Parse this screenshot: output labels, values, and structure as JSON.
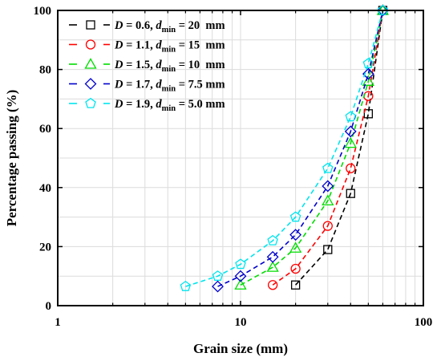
{
  "chart_data": {
    "type": "scatter",
    "xlabel": "Grain size (mm)",
    "ylabel": "Percentage passing (%)",
    "x_scale": "log",
    "xlim": [
      1,
      100
    ],
    "ylim": [
      0,
      100
    ],
    "x_ticks": [
      "1",
      "10",
      "100"
    ],
    "y_ticks": [
      "0",
      "20",
      "40",
      "60",
      "80",
      "100"
    ],
    "grid": true,
    "legend_position": "top-left",
    "series": [
      {
        "name": "D = 0.6, dmin = 20 mm",
        "legend": {
          "d_label": "D",
          "d_value": " = 0.6, ",
          "dmin_label": "d",
          "dmin_sub": "min",
          "dmin_value": " = 20  mm"
        },
        "color": "#000000",
        "marker": "square",
        "x": [
          20,
          30,
          40,
          50,
          60
        ],
        "y": [
          7,
          19,
          38,
          65,
          100
        ]
      },
      {
        "name": "D = 1.1, dmin = 15 mm",
        "legend": {
          "d_label": "D",
          "d_value": " = 1.1, ",
          "dmin_label": "d",
          "dmin_sub": "min",
          "dmin_value": " = 15  mm"
        },
        "color": "#ff0000",
        "marker": "circle",
        "x": [
          15,
          20,
          30,
          40,
          50,
          60
        ],
        "y": [
          7,
          12.5,
          27,
          46.5,
          71,
          100
        ]
      },
      {
        "name": "D = 1.5, dmin = 10 mm",
        "legend": {
          "d_label": "D",
          "d_value": " = 1.5, ",
          "dmin_label": "d",
          "dmin_sub": "min",
          "dmin_value": " = 10  mm"
        },
        "color": "#00dd00",
        "marker": "triangle",
        "x": [
          10,
          15,
          20,
          30,
          40,
          50,
          60
        ],
        "y": [
          7,
          13,
          19.5,
          35.5,
          55,
          76,
          100
        ]
      },
      {
        "name": "D = 1.7, dmin = 7.5 mm",
        "legend": {
          "d_label": "D",
          "d_value": " = 1.7, ",
          "dmin_label": "d",
          "dmin_sub": "min",
          "dmin_value": " = 7.5 mm"
        },
        "color": "#0000cc",
        "marker": "diamond",
        "x": [
          7.5,
          10,
          15,
          20,
          30,
          40,
          50,
          60
        ],
        "y": [
          6.5,
          10,
          16.5,
          24,
          40.5,
          59,
          78.5,
          100
        ]
      },
      {
        "name": "D = 1.9, dmin = 5.0 mm",
        "legend": {
          "d_label": "D",
          "d_value": " = 1.9, ",
          "dmin_label": "d",
          "dmin_sub": "min",
          "dmin_value": " = 5.0 mm"
        },
        "color": "#00e5ee",
        "marker": "pentagon",
        "x": [
          5,
          7.5,
          10,
          15,
          20,
          30,
          40,
          50,
          60
        ],
        "y": [
          6.5,
          10,
          14,
          22,
          30,
          46.5,
          64,
          82,
          100
        ]
      }
    ]
  }
}
